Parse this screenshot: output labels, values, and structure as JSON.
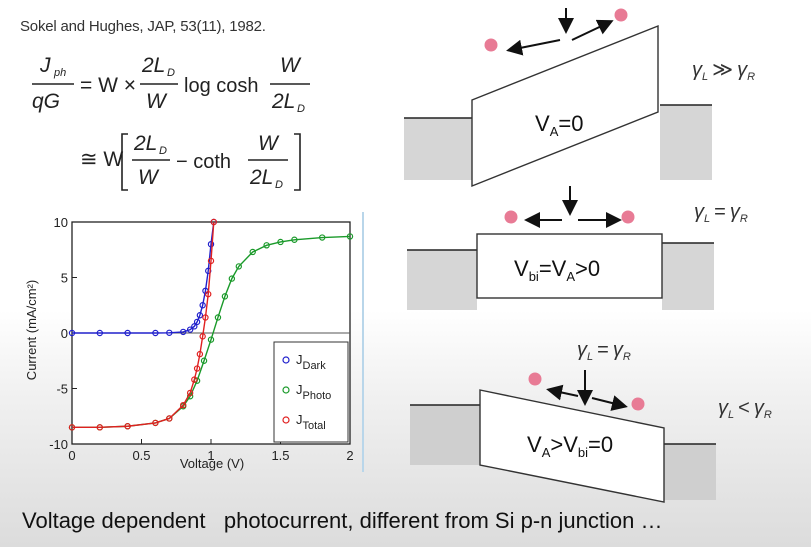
{
  "citation": "Sokel and Hughes, JAP, 53(11), 1982.",
  "formula": {
    "line1": {
      "lhs_num": "J",
      "lhs_num_sub": "ph",
      "lhs_den": "qG",
      "eq": "= W ×",
      "frac_num": "2L",
      "frac_num_sub": "D",
      "frac_den": "W",
      "func": "log cosh",
      "arg_num": "W",
      "arg_den": "2L",
      "arg_den_sub": "D"
    },
    "line2": {
      "approx": "≅ W",
      "frac_num": "2L",
      "frac_num_sub": "D",
      "frac_den": "W",
      "minus_func": "− coth",
      "arg_num": "W",
      "arg_den": "2L",
      "arg_den_sub": "D"
    }
  },
  "bands": [
    {
      "label": "V",
      "sub": "A",
      "rest": "=0",
      "gamma": "γ",
      "gamma_sub_l": "L",
      "relation": "≫",
      "gamma_sub_r": "R"
    },
    {
      "label_pre": "V",
      "sub1": "bi",
      "mid": "=V",
      "sub2": "A",
      "rest": ">0",
      "gamma": "γ",
      "gamma_sub_l": "L",
      "relation": "=",
      "gamma_sub_r": "R"
    },
    {
      "label_pre": "V",
      "sub1": "A",
      "mid": ">V",
      "sub2": "bi",
      "rest": "=0",
      "gamma": "γ",
      "gamma_sub_l": "L",
      "relation": "<",
      "gamma_sub_r": "R",
      "top_relation": "="
    }
  ],
  "caption": "Voltage dependent   photocurrent, different from Si p-n junction …",
  "colors": {
    "dark": "#2020cc",
    "photo": "#1a9a2a",
    "total": "#e02020",
    "particle": "#e87b95",
    "contact": "#d6d6d6"
  },
  "chart_data": {
    "type": "scatter",
    "xlabel": "Voltage (V)",
    "ylabel": "Current (mA/cm²)",
    "xlim": [
      0,
      2
    ],
    "ylim": [
      -10,
      10
    ],
    "xticks": [
      "0",
      "0.5",
      "1",
      "1.5",
      "2"
    ],
    "yticks": [
      "-10",
      "-5",
      "0",
      "5",
      "10"
    ],
    "legend_position": "bottom-right",
    "series": [
      {
        "name": "J",
        "sub": "Dark",
        "x": [
          0,
          0.2,
          0.4,
          0.6,
          0.7,
          0.8,
          0.85,
          0.88,
          0.9,
          0.92,
          0.94,
          0.96,
          0.98,
          1.0,
          1.02
        ],
        "y": [
          0,
          0,
          0,
          0,
          0.02,
          0.1,
          0.3,
          0.6,
          1.0,
          1.6,
          2.5,
          3.8,
          5.6,
          8.0,
          10
        ]
      },
      {
        "name": "J",
        "sub": "Photo",
        "x": [
          0,
          0.2,
          0.4,
          0.6,
          0.7,
          0.8,
          0.85,
          0.9,
          0.95,
          1.0,
          1.05,
          1.1,
          1.15,
          1.2,
          1.3,
          1.4,
          1.5,
          1.6,
          1.8,
          2.0
        ],
        "y": [
          -8.5,
          -8.5,
          -8.4,
          -8.1,
          -7.7,
          -6.6,
          -5.7,
          -4.3,
          -2.5,
          -0.6,
          1.4,
          3.3,
          4.9,
          6.0,
          7.3,
          7.9,
          8.2,
          8.4,
          8.6,
          8.7
        ]
      },
      {
        "name": "J",
        "sub": "Total",
        "x": [
          0,
          0.2,
          0.4,
          0.6,
          0.7,
          0.8,
          0.85,
          0.88,
          0.9,
          0.92,
          0.94,
          0.96,
          0.98,
          1.0,
          1.02
        ],
        "y": [
          -8.5,
          -8.5,
          -8.4,
          -8.1,
          -7.7,
          -6.5,
          -5.4,
          -4.2,
          -3.2,
          -1.9,
          -0.3,
          1.4,
          3.5,
          6.5,
          10
        ]
      }
    ]
  }
}
